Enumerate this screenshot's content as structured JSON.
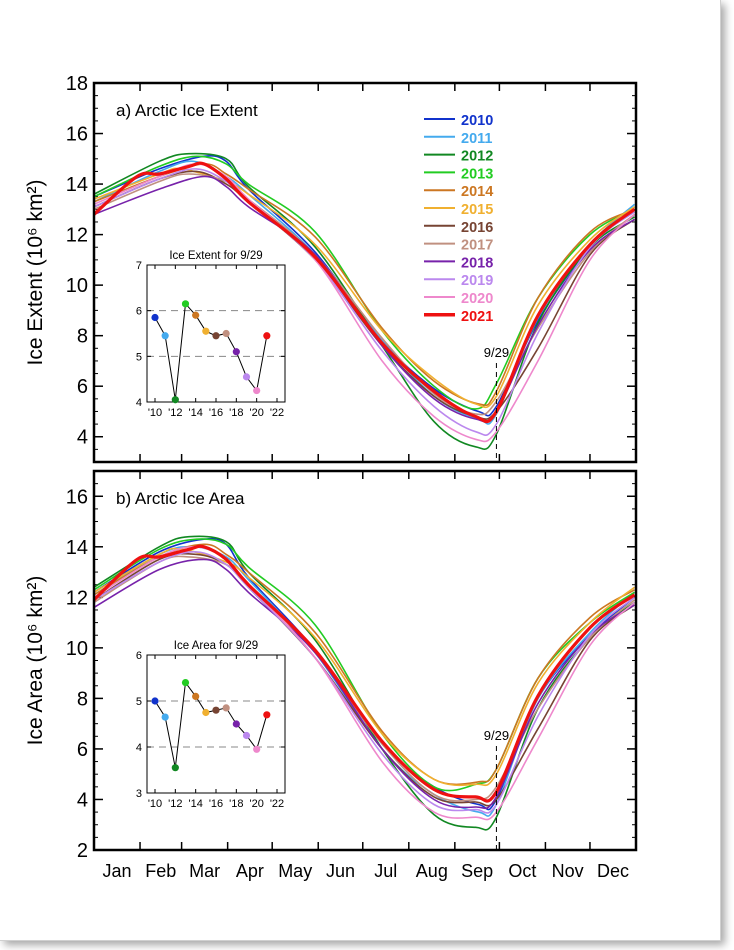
{
  "chart_data": [
    {
      "type": "line",
      "title": "a) Arctic Ice Extent",
      "ylabel": "Ice Extent (10⁶ km²)",
      "ylim": [
        3,
        18
      ],
      "yticks": [
        4,
        6,
        8,
        10,
        12,
        14,
        16,
        18
      ],
      "xlim": [
        1,
        366
      ],
      "months": [
        "Jan",
        "Feb",
        "Mar",
        "Apr",
        "May",
        "Jun",
        "Jul",
        "Aug",
        "Sep",
        "Oct",
        "Nov",
        "Dec"
      ],
      "marker_label": "9/29",
      "marker_doy": 272,
      "series": [
        {
          "name": "2010",
          "color": "#1133cc",
          "bold": false,
          "x": [
            1,
            45,
            75,
            90,
            105,
            150,
            195,
            230,
            260,
            272,
            300,
            335,
            365
          ],
          "y": [
            13.5,
            14.6,
            15.1,
            14.9,
            13.8,
            11.3,
            7.8,
            5.9,
            5.0,
            5.2,
            8.6,
            11.5,
            13.0
          ]
        },
        {
          "name": "2011",
          "color": "#44aaee",
          "bold": false,
          "x": [
            1,
            45,
            68,
            90,
            105,
            150,
            195,
            230,
            260,
            272,
            300,
            335,
            365
          ],
          "y": [
            13.3,
            14.5,
            14.9,
            14.3,
            13.6,
            11.2,
            7.8,
            5.6,
            4.7,
            4.9,
            8.7,
            11.6,
            13.2
          ]
        },
        {
          "name": "2012",
          "color": "#118822",
          "bold": false,
          "x": [
            1,
            45,
            65,
            90,
            105,
            150,
            195,
            230,
            258,
            272,
            300,
            335,
            365
          ],
          "y": [
            13.6,
            14.9,
            15.2,
            15.0,
            13.9,
            11.5,
            7.6,
            4.6,
            3.6,
            4.1,
            8.5,
            11.5,
            12.7
          ]
        },
        {
          "name": "2013",
          "color": "#22cc22",
          "bold": false,
          "x": [
            1,
            45,
            70,
            90,
            105,
            150,
            195,
            230,
            258,
            272,
            300,
            335,
            365
          ],
          "y": [
            13.5,
            14.7,
            15.1,
            14.8,
            14.0,
            12.1,
            8.2,
            6.0,
            5.1,
            6.1,
            9.5,
            12.0,
            13.0
          ]
        },
        {
          "name": "2014",
          "color": "#cc7722",
          "bold": false,
          "x": [
            1,
            45,
            75,
            90,
            105,
            150,
            195,
            230,
            260,
            272,
            300,
            335,
            365
          ],
          "y": [
            13.3,
            14.3,
            14.8,
            14.4,
            13.8,
            11.9,
            8.3,
            6.2,
            5.3,
            5.8,
            9.5,
            12.1,
            13.0
          ]
        },
        {
          "name": "2015",
          "color": "#f0b030",
          "bold": false,
          "x": [
            1,
            45,
            60,
            90,
            105,
            150,
            195,
            230,
            258,
            272,
            300,
            335,
            365
          ],
          "y": [
            13.4,
            14.4,
            14.6,
            14.1,
            13.6,
            11.6,
            8.2,
            6.3,
            5.3,
            5.6,
            9.2,
            11.8,
            13.1
          ]
        },
        {
          "name": "2016",
          "color": "#774433",
          "bold": false,
          "x": [
            1,
            45,
            70,
            90,
            105,
            150,
            195,
            230,
            258,
            272,
            300,
            335,
            365
          ],
          "y": [
            13.1,
            14.2,
            14.5,
            14.0,
            13.3,
            11.0,
            7.6,
            5.6,
            4.8,
            5.0,
            7.5,
            11.2,
            12.6
          ]
        },
        {
          "name": "2017",
          "color": "#c09080",
          "bold": false,
          "x": [
            1,
            45,
            65,
            90,
            105,
            150,
            195,
            230,
            258,
            272,
            300,
            335,
            365
          ],
          "y": [
            13.0,
            14.1,
            14.4,
            14.1,
            13.4,
            11.2,
            7.9,
            5.7,
            4.9,
            5.4,
            8.3,
            11.3,
            12.8
          ]
        },
        {
          "name": "2018",
          "color": "#7722aa",
          "bold": false,
          "x": [
            1,
            45,
            75,
            90,
            105,
            150,
            195,
            230,
            258,
            272,
            300,
            335,
            365
          ],
          "y": [
            12.8,
            13.8,
            14.3,
            13.9,
            13.1,
            11.2,
            7.6,
            5.5,
            4.7,
            5.0,
            8.4,
            11.4,
            12.6
          ]
        },
        {
          "name": "2019",
          "color": "#bb88ee",
          "bold": false,
          "x": [
            1,
            45,
            70,
            90,
            105,
            150,
            195,
            230,
            258,
            272,
            300,
            335,
            365
          ],
          "y": [
            13.1,
            14.2,
            14.6,
            14.1,
            13.3,
            11.0,
            7.4,
            5.2,
            4.2,
            4.5,
            8.1,
            11.5,
            12.9
          ]
        },
        {
          "name": "2020",
          "color": "#ee88cc",
          "bold": false,
          "x": [
            1,
            45,
            70,
            90,
            105,
            150,
            195,
            230,
            258,
            272,
            300,
            335,
            365
          ],
          "y": [
            13.2,
            14.3,
            14.8,
            14.3,
            13.4,
            11.0,
            7.0,
            4.8,
            3.9,
            4.2,
            7.0,
            11.0,
            12.8
          ]
        },
        {
          "name": "2021",
          "color": "#ee1111",
          "bold": true,
          "x": [
            1,
            30,
            45,
            65,
            75,
            90,
            105,
            150,
            195,
            230,
            258,
            272,
            300,
            335,
            365
          ],
          "y": [
            12.8,
            14.3,
            14.4,
            14.7,
            14.8,
            14.2,
            13.3,
            11.1,
            7.7,
            5.8,
            4.8,
            5.0,
            8.8,
            11.6,
            13.0
          ]
        }
      ],
      "inset": {
        "title": "Ice Extent for 9/29",
        "ylim": [
          4,
          7
        ],
        "yticks": [
          4,
          5,
          6,
          7
        ],
        "dashed": [
          5,
          6
        ],
        "xticks": [
          "'10",
          "'12",
          "'14",
          "'16",
          "'18",
          "'20",
          "'22"
        ],
        "years": [
          2010,
          2011,
          2012,
          2013,
          2014,
          2015,
          2016,
          2017,
          2018,
          2019,
          2020,
          2021
        ],
        "values": [
          5.85,
          5.45,
          4.05,
          6.15,
          5.9,
          5.55,
          5.45,
          5.5,
          5.1,
          4.55,
          4.25,
          5.45
        ]
      }
    },
    {
      "type": "line",
      "title": "b) Arctic Ice Area",
      "ylabel": "Ice Area (10⁶ km²)",
      "ylim": [
        2,
        17
      ],
      "yticks": [
        2,
        4,
        6,
        8,
        10,
        12,
        14,
        16
      ],
      "xlim": [
        1,
        366
      ],
      "months": [
        "Jan",
        "Feb",
        "Mar",
        "Apr",
        "May",
        "Jun",
        "Jul",
        "Aug",
        "Sep",
        "Oct",
        "Nov",
        "Dec"
      ],
      "marker_label": "9/29",
      "marker_doy": 272,
      "series": [
        {
          "name": "2010",
          "color": "#1133cc",
          "bold": false,
          "x": [
            1,
            45,
            75,
            90,
            105,
            150,
            195,
            230,
            260,
            272,
            300,
            335,
            365
          ],
          "y": [
            12.2,
            13.8,
            14.3,
            14.1,
            12.8,
            9.9,
            6.2,
            4.5,
            3.8,
            4.0,
            8.0,
            10.5,
            12.0
          ]
        },
        {
          "name": "2011",
          "color": "#44aaee",
          "bold": false,
          "x": [
            1,
            45,
            68,
            90,
            105,
            150,
            195,
            230,
            260,
            272,
            300,
            335,
            365
          ],
          "y": [
            12.1,
            13.7,
            14.0,
            13.6,
            12.7,
            9.8,
            6.0,
            4.2,
            3.5,
            3.8,
            8.0,
            10.6,
            12.2
          ]
        },
        {
          "name": "2012",
          "color": "#118822",
          "bold": false,
          "x": [
            1,
            45,
            65,
            90,
            105,
            150,
            195,
            230,
            258,
            272,
            300,
            335,
            365
          ],
          "y": [
            12.4,
            14.0,
            14.4,
            14.2,
            13.0,
            10.3,
            6.0,
            3.4,
            2.9,
            3.3,
            7.6,
            10.4,
            11.8
          ]
        },
        {
          "name": "2013",
          "color": "#22cc22",
          "bold": false,
          "x": [
            1,
            45,
            70,
            90,
            105,
            150,
            195,
            230,
            258,
            272,
            300,
            335,
            365
          ],
          "y": [
            12.3,
            13.9,
            14.3,
            14.1,
            13.2,
            10.9,
            6.6,
            4.5,
            4.6,
            5.2,
            8.8,
            11.0,
            12.2
          ]
        },
        {
          "name": "2014",
          "color": "#cc7722",
          "bold": false,
          "x": [
            1,
            45,
            75,
            90,
            105,
            150,
            195,
            230,
            260,
            272,
            300,
            335,
            365
          ],
          "y": [
            12.1,
            13.6,
            14.1,
            13.7,
            13.0,
            10.6,
            6.7,
            4.8,
            4.7,
            5.2,
            8.8,
            11.2,
            12.3
          ]
        },
        {
          "name": "2015",
          "color": "#f0b030",
          "bold": false,
          "x": [
            1,
            45,
            60,
            90,
            105,
            150,
            195,
            230,
            258,
            272,
            300,
            335,
            365
          ],
          "y": [
            12.2,
            13.7,
            13.9,
            13.4,
            12.8,
            10.4,
            6.6,
            4.8,
            4.6,
            5.0,
            8.6,
            11.0,
            12.4
          ]
        },
        {
          "name": "2016",
          "color": "#774433",
          "bold": false,
          "x": [
            1,
            45,
            70,
            90,
            105,
            150,
            195,
            230,
            258,
            272,
            300,
            335,
            365
          ],
          "y": [
            11.9,
            13.5,
            13.7,
            13.3,
            12.4,
            9.6,
            6.0,
            4.1,
            3.9,
            4.0,
            6.8,
            10.3,
            11.7
          ]
        },
        {
          "name": "2017",
          "color": "#c09080",
          "bold": false,
          "x": [
            1,
            45,
            65,
            90,
            105,
            150,
            195,
            230,
            258,
            272,
            300,
            335,
            365
          ],
          "y": [
            11.8,
            13.4,
            13.6,
            13.3,
            12.5,
            9.8,
            6.2,
            4.2,
            4.0,
            4.5,
            7.6,
            10.4,
            11.9
          ]
        },
        {
          "name": "2018",
          "color": "#7722aa",
          "bold": false,
          "x": [
            1,
            45,
            75,
            90,
            105,
            150,
            195,
            230,
            258,
            272,
            300,
            335,
            365
          ],
          "y": [
            11.6,
            13.1,
            13.5,
            13.1,
            12.2,
            9.8,
            6.0,
            4.0,
            3.7,
            4.1,
            7.8,
            10.5,
            11.7
          ]
        },
        {
          "name": "2019",
          "color": "#bb88ee",
          "bold": false,
          "x": [
            1,
            45,
            70,
            90,
            105,
            150,
            195,
            230,
            258,
            272,
            300,
            335,
            365
          ],
          "y": [
            11.9,
            13.4,
            13.8,
            13.3,
            12.4,
            9.6,
            5.8,
            3.8,
            3.6,
            3.8,
            7.3,
            10.5,
            12.0
          ]
        },
        {
          "name": "2020",
          "color": "#ee88cc",
          "bold": false,
          "x": [
            1,
            45,
            70,
            90,
            105,
            150,
            195,
            230,
            258,
            272,
            300,
            335,
            365
          ],
          "y": [
            12.0,
            13.6,
            14.0,
            13.5,
            12.5,
            9.6,
            5.5,
            3.5,
            3.3,
            3.5,
            6.4,
            10.1,
            11.8
          ]
        },
        {
          "name": "2021",
          "color": "#ee1111",
          "bold": true,
          "x": [
            1,
            30,
            45,
            65,
            75,
            90,
            105,
            150,
            195,
            230,
            258,
            272,
            300,
            335,
            365
          ],
          "y": [
            11.9,
            13.5,
            13.6,
            13.9,
            14.0,
            13.5,
            12.5,
            9.9,
            6.3,
            4.4,
            4.1,
            4.3,
            8.1,
            10.8,
            12.1
          ]
        }
      ],
      "inset": {
        "title": "Ice Area for 9/29",
        "ylim": [
          3,
          6
        ],
        "yticks": [
          3,
          4,
          5,
          6
        ],
        "dashed": [
          4,
          5
        ],
        "xticks": [
          "'10",
          "'12",
          "'14",
          "'16",
          "'18",
          "'20",
          "'22"
        ],
        "years": [
          2010,
          2011,
          2012,
          2013,
          2014,
          2015,
          2016,
          2017,
          2018,
          2019,
          2020,
          2021
        ],
        "values": [
          5.0,
          4.65,
          3.55,
          5.4,
          5.1,
          4.75,
          4.8,
          4.85,
          4.5,
          4.25,
          3.95,
          4.7
        ]
      }
    }
  ]
}
